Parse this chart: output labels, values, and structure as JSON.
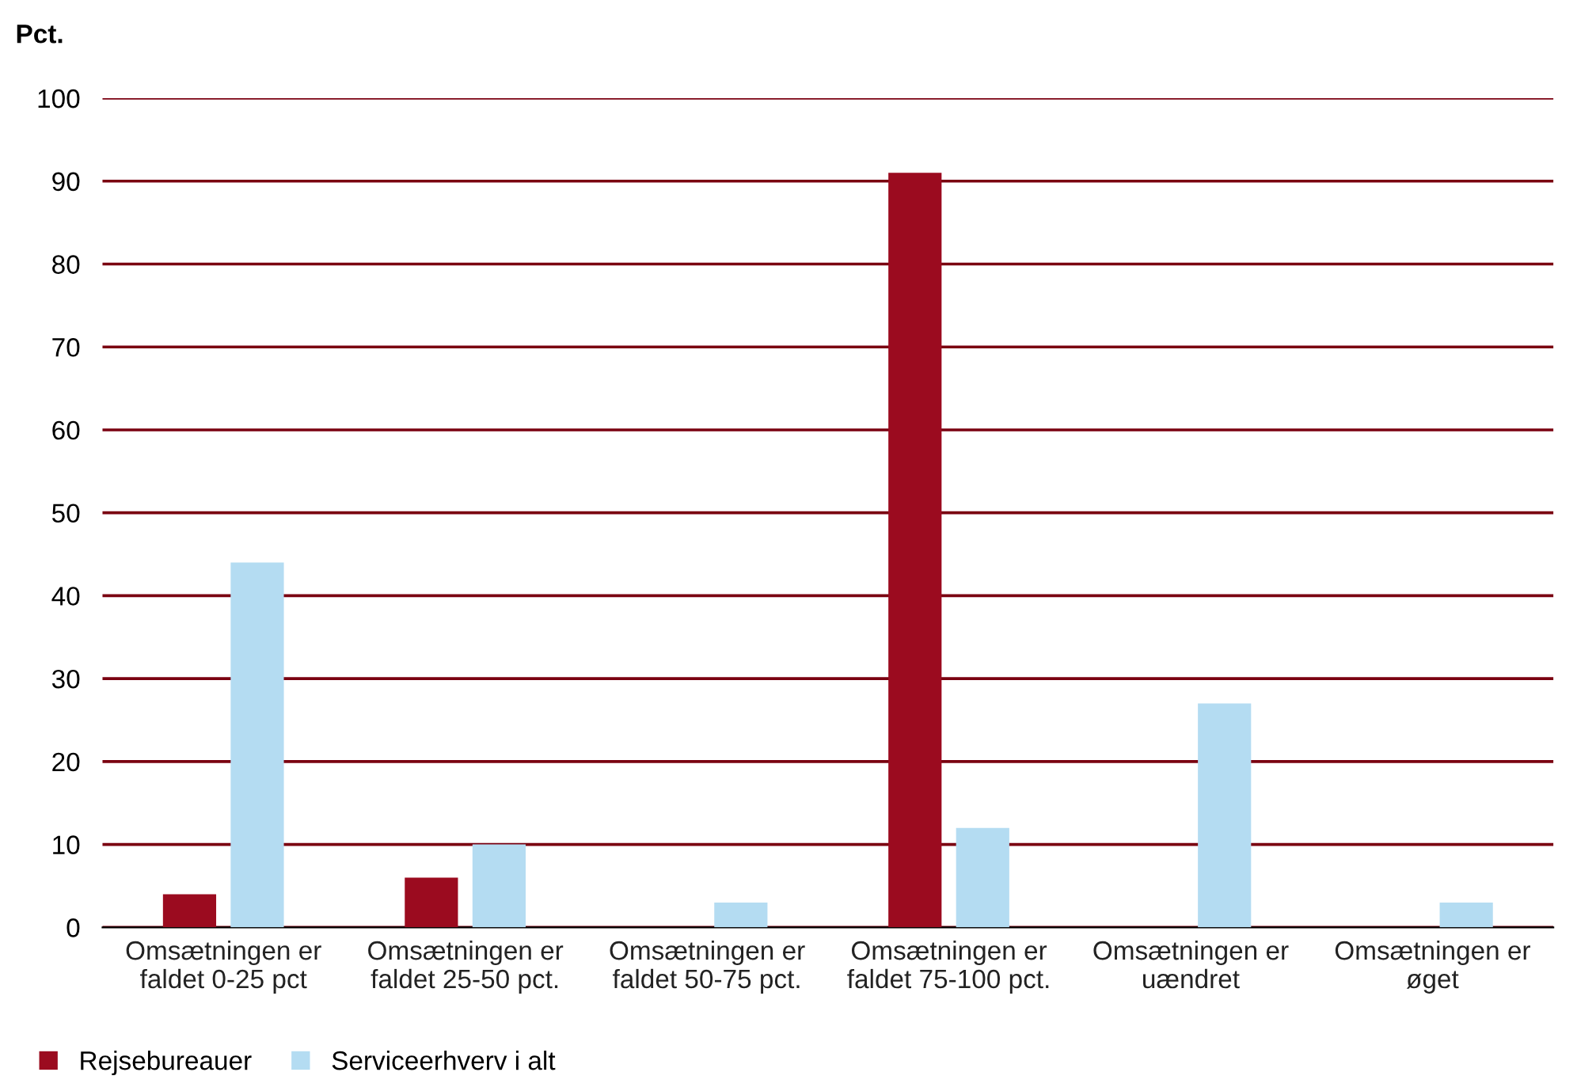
{
  "chart_data": {
    "type": "bar",
    "ylabel": "Pct.",
    "categories": [
      "Omsætningen er\nfaldet 0-25 pct",
      "Omsætningen er\nfaldet 25-50 pct.",
      "Omsætningen er\nfaldet 50-75 pct.",
      "Omsætningen er\nfaldet 75-100 pct.",
      "Omsætningen er\nuændret",
      "Omsætningen er\nøget"
    ],
    "series": [
      {
        "name": "Rejsebureauer",
        "color": "#9b0b1f",
        "values": [
          4,
          6,
          0,
          91,
          0,
          0
        ]
      },
      {
        "name": "Serviceerhverv i alt",
        "color": "#b4dcf2",
        "values": [
          44,
          10,
          3,
          12,
          27,
          3
        ]
      }
    ],
    "ylim": [
      0,
      100
    ],
    "yticks": [
      0,
      10,
      20,
      30,
      40,
      50,
      60,
      70,
      80,
      90,
      100
    ],
    "grid": "y",
    "legend": "bottom left"
  }
}
